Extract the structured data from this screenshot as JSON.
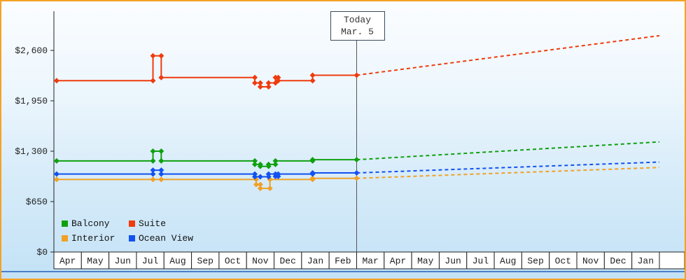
{
  "theme": {
    "frame_border": "#f5a125",
    "axis_color": "#222222",
    "bottom_line_color": "#4b7fc9",
    "background_top": "#fbfdff",
    "background_bottom": "#c3e2f6",
    "today_line_color": "#555555"
  },
  "chart_data": {
    "type": "line",
    "grid": false,
    "legend_position": "bottom-left",
    "ylim": [
      0,
      3100
    ],
    "months": [
      "Apr",
      "May",
      "Jun",
      "Jul",
      "Aug",
      "Sep",
      "Oct",
      "Nov",
      "Dec",
      "Jan",
      "Feb",
      "Mar",
      "Apr",
      "May",
      "Jun",
      "Jul",
      "Aug",
      "Sep",
      "Oct",
      "Nov",
      "Dec",
      "Jan"
    ],
    "yaxis": {
      "ticks": [
        {
          "value": 0,
          "label": "$0"
        },
        {
          "value": 650,
          "label": "$650"
        },
        {
          "value": 1300,
          "label": "$1,300"
        },
        {
          "value": 1950,
          "label": "$1,950"
        },
        {
          "value": 2600,
          "label": "$2,600"
        }
      ]
    },
    "today": {
      "label": "Today",
      "date": "Mar. 5",
      "t": 11
    },
    "series": [
      {
        "name": "Balcony",
        "color": "#0fa00f",
        "history": [
          [
            0.1,
            1175
          ],
          [
            3.6,
            1175
          ],
          [
            3.6,
            1300
          ],
          [
            3.9,
            1300
          ],
          [
            3.9,
            1175
          ],
          [
            7.3,
            1175
          ],
          [
            7.3,
            1130
          ],
          [
            7.5,
            1130
          ],
          [
            7.5,
            1105
          ],
          [
            7.8,
            1105
          ],
          [
            7.8,
            1130
          ],
          [
            8.05,
            1130
          ],
          [
            8.05,
            1175
          ],
          [
            9.4,
            1175
          ],
          [
            9.4,
            1190
          ],
          [
            11,
            1190
          ]
        ],
        "forecast": [
          [
            11,
            1190
          ],
          [
            22,
            1420
          ]
        ]
      },
      {
        "name": "Suite",
        "color": "#ef3b0e",
        "history": [
          [
            0.1,
            2210
          ],
          [
            3.6,
            2210
          ],
          [
            3.6,
            2530
          ],
          [
            3.9,
            2530
          ],
          [
            3.9,
            2250
          ],
          [
            7.3,
            2250
          ],
          [
            7.3,
            2180
          ],
          [
            7.5,
            2180
          ],
          [
            7.5,
            2130
          ],
          [
            7.8,
            2130
          ],
          [
            7.8,
            2180
          ],
          [
            8.05,
            2180
          ],
          [
            8.05,
            2250
          ],
          [
            8.15,
            2250
          ],
          [
            8.15,
            2210
          ],
          [
            9.4,
            2210
          ],
          [
            9.4,
            2280
          ],
          [
            11,
            2280
          ]
        ],
        "forecast": [
          [
            11,
            2280
          ],
          [
            22,
            2790
          ]
        ]
      },
      {
        "name": "Interior",
        "color": "#f0a125",
        "history": [
          [
            0.1,
            935
          ],
          [
            3.6,
            935
          ],
          [
            3.9,
            935
          ],
          [
            7.35,
            935
          ],
          [
            7.35,
            870
          ],
          [
            7.5,
            870
          ],
          [
            7.5,
            820
          ],
          [
            7.85,
            820
          ],
          [
            7.85,
            935
          ],
          [
            9.4,
            935
          ],
          [
            9.4,
            950
          ],
          [
            11,
            950
          ]
        ],
        "forecast": [
          [
            11,
            950
          ],
          [
            22,
            1090
          ]
        ]
      },
      {
        "name": "Ocean View",
        "color": "#1351f0",
        "history": [
          [
            0.1,
            1005
          ],
          [
            3.6,
            1005
          ],
          [
            3.6,
            1055
          ],
          [
            3.9,
            1055
          ],
          [
            3.9,
            1005
          ],
          [
            7.3,
            1005
          ],
          [
            7.3,
            970
          ],
          [
            7.5,
            970
          ],
          [
            7.8,
            970
          ],
          [
            7.8,
            1005
          ],
          [
            8.05,
            1005
          ],
          [
            8.05,
            975
          ],
          [
            8.15,
            975
          ],
          [
            8.15,
            1005
          ],
          [
            9.4,
            1005
          ],
          [
            9.4,
            1020
          ],
          [
            11,
            1020
          ]
        ],
        "forecast": [
          [
            11,
            1020
          ],
          [
            22,
            1160
          ]
        ]
      }
    ]
  }
}
